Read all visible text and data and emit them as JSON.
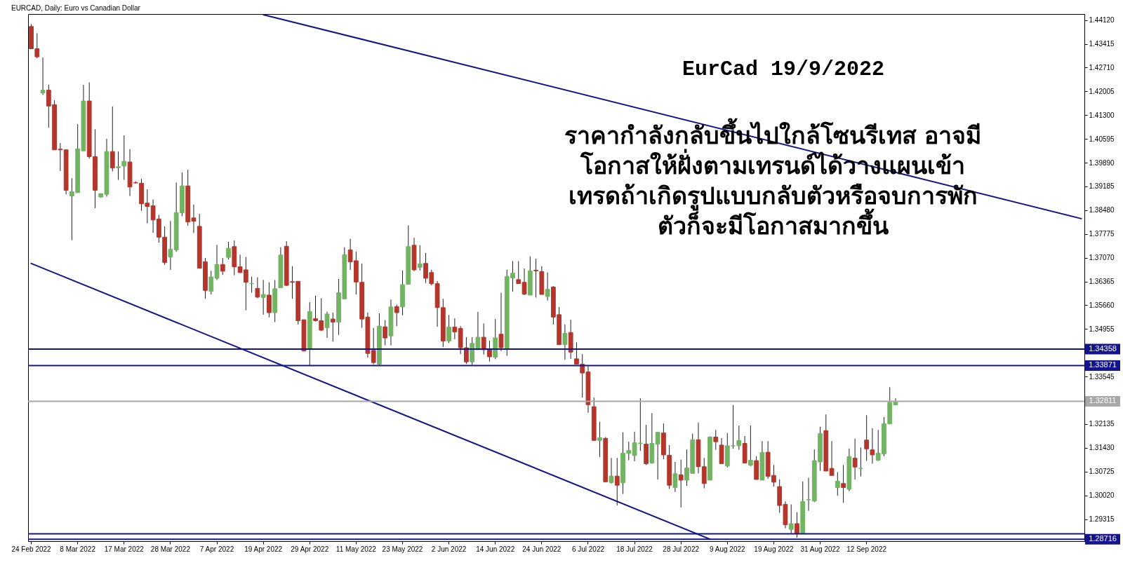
{
  "chart_data": {
    "type": "candlestick",
    "title": "EURCAD, Daily:  Euro vs Canadian Dollar",
    "annotations": [
      "EurCad 19/9/2022",
      "ราคากำลังกลับขึ้นไปใกล้โซนรีเทส  อาจมี\nโอกาสให้ฝั่งตามเทรนด์ได้วางแผนเข้า\nเทรดถ้าเกิดรูปแบบกลับตัวหรือจบการพัก\nตัวก็จะมีโอกาสมากขึ้น"
    ],
    "categories": [
      "24 Feb 2022",
      null,
      null,
      null,
      null,
      null,
      null,
      null,
      "8 Mar 2022",
      null,
      null,
      null,
      null,
      null,
      null,
      null,
      "17 Mar 2022",
      null,
      null,
      null,
      null,
      null,
      null,
      null,
      "28 Mar 2022",
      null,
      null,
      null,
      null,
      null,
      null,
      null,
      "7 Apr 2022",
      null,
      null,
      null,
      null,
      null,
      null,
      null,
      "19 Apr 2022",
      null,
      null,
      null,
      null,
      null,
      null,
      null,
      "29 Apr 2022",
      null,
      null,
      null,
      null,
      null,
      null,
      null,
      "11 May 2022",
      null,
      null,
      null,
      null,
      null,
      null,
      null,
      "23 May 2022",
      null,
      null,
      null,
      null,
      null,
      null,
      null,
      "2 Jun 2022",
      null,
      null,
      null,
      null,
      null,
      null,
      null,
      "14 Jun 2022",
      null,
      null,
      null,
      null,
      null,
      null,
      null,
      "24 Jun 2022",
      null,
      null,
      null,
      null,
      null,
      null,
      null,
      "6 Jul 2022",
      null,
      null,
      null,
      null,
      null,
      null,
      null,
      "18 Jul 2022",
      null,
      null,
      null,
      null,
      null,
      null,
      null,
      "28 Jul 2022",
      null,
      null,
      null,
      null,
      null,
      null,
      null,
      "9 Aug 2022",
      null,
      null,
      null,
      null,
      null,
      null,
      null,
      "19 Aug 2022",
      null,
      null,
      null,
      null,
      null,
      null,
      null,
      "31 Aug 2022",
      null,
      null,
      null,
      null,
      null,
      null,
      null,
      "12 Sep 2022",
      null,
      null,
      null,
      null,
      null,
      null,
      null,
      null,
      null,
      null,
      null,
      null,
      null,
      null,
      null,
      null,
      null,
      null,
      null,
      null,
      null,
      null,
      null,
      null,
      null,
      null,
      null,
      null,
      null,
      null,
      null,
      null,
      null,
      null,
      null,
      null,
      null
    ],
    "colors": [
      "#b3362c",
      "#b3362c",
      "#72b464",
      "#b3362c",
      "#b3362c",
      "#b3362c",
      "#b3362c",
      "#72b464",
      "#72b464",
      "#72b464",
      "#b3362c",
      "#b3362c",
      "#72b464",
      "#72b464",
      "#b3362c",
      "#72b464",
      "#72b464",
      "#b3362c",
      "#b3362c",
      "#b3362c",
      "#b3362c",
      "#b3362c",
      "#b3362c",
      "#b3362c",
      "#72b464",
      "#72b464",
      "#72b464",
      "#b3362c",
      "#b3362c",
      "#b3362c",
      "#b3362c",
      "#72b464",
      "#72b464",
      "#b3362c",
      "#72b464",
      "#b3362c",
      "#b3362c",
      "#b3362c",
      "#72b464",
      "#b3362c",
      "#72b464",
      "#b3362c",
      "#72b464",
      "#72b464",
      "#b3362c",
      "#b3362c",
      "#b3362c",
      "#b3362c",
      "#72b464",
      "#b3362c",
      "#b3362c",
      "#72b464",
      "#b3362c",
      "#72b464",
      "#72b464",
      "#b3362c",
      "#b3362c",
      "#b3362c",
      "#b3362c",
      "#b3362c",
      "#72b464",
      "#b3362c",
      "#72b464",
      "#b3362c",
      "#72b464",
      "#72b464",
      "#b3362c",
      "#72b464",
      "#b3362c",
      "#b3362c",
      "#b3362c",
      "#b3362c",
      "#72b464",
      "#b3362c",
      "#b3362c",
      "#b3362c",
      "#72b464",
      "#72b464",
      "#b3362c",
      "#b3362c",
      "#72b464",
      "#b3362c",
      "#72b464",
      "#72b464",
      "#b3362c",
      "#b3362c",
      "#72b464",
      "#b3362c",
      "#b3362c",
      "#72b464",
      "#b3362c",
      "#b3362c",
      "#72b464",
      "#b3362c",
      "#b3362c",
      "#b3362c",
      "#b3362c",
      "#b3362c",
      "#72b464",
      "#b3362c",
      "#72b464",
      "#b3362c",
      "#72b464",
      "#72b464",
      "#72b464",
      "#72b464",
      "#b3362c",
      "#72b464",
      "#72b464",
      "#b3362c",
      "#b3362c",
      "#72b464",
      "#b3362c",
      "#72b464",
      "#72b464",
      "#b3362c",
      "#b3362c",
      "#72b464",
      "#b3362c",
      "#b3362c",
      "#72b464",
      "#72b464",
      "#72b464",
      "#b3362c",
      "#72b464",
      "#b3362c",
      "#72b464",
      "#b3362c",
      "#b3362c",
      "#b3362c",
      "#b3362c",
      "#72b464",
      "#b3362c",
      "#72b464",
      "#72b464",
      "#72b464",
      "#72b464",
      "#b3362c",
      "#b3362c",
      "#72b464",
      "#b3362c",
      "#72b464",
      "#b3362c",
      "#72b464",
      "#b3362c",
      "#b3362c",
      "#72b464",
      "#72b464",
      "#72b464",
      "#72b464",
      null,
      null,
      null,
      null,
      null,
      null,
      null,
      null,
      null,
      null,
      null,
      null,
      null,
      null,
      null,
      null,
      null,
      null,
      null,
      null,
      null,
      null,
      null,
      null,
      null,
      null,
      null,
      null,
      null,
      null,
      null,
      null
    ],
    "ohlc": [
      [
        1.4393,
        1.44,
        1.4327,
        1.4327
      ],
      [
        1.4327,
        1.4373,
        1.4299,
        1.4303
      ],
      [
        1.4196,
        1.4301,
        1.419,
        1.4204
      ],
      [
        1.4204,
        1.422,
        1.4093,
        1.4157
      ],
      [
        1.4161,
        1.4174,
        1.4027,
        1.4027
      ],
      [
        1.4029,
        1.4047,
        1.3964,
        1.4027
      ],
      [
        1.4027,
        1.4029,
        1.3895,
        1.3907
      ],
      [
        1.389,
        1.3943,
        1.3759,
        1.3903
      ],
      [
        1.39,
        1.4103,
        1.39,
        1.403
      ],
      [
        1.4024,
        1.422,
        1.4024,
        1.4172
      ],
      [
        1.4172,
        1.4227,
        1.4001,
        1.4007
      ],
      [
        1.4007,
        1.4088,
        1.3854,
        1.3907
      ],
      [
        1.3887,
        1.3898,
        1.3886,
        1.3897
      ],
      [
        1.3895,
        1.406,
        1.3888,
        1.4022
      ],
      [
        1.4022,
        1.4156,
        1.3963,
        1.3973
      ],
      [
        1.3974,
        1.4022,
        1.3938,
        1.3977
      ],
      [
        1.3979,
        1.407,
        1.3938,
        1.3993
      ],
      [
        1.3991,
        1.4029,
        1.389,
        1.3917
      ],
      [
        1.393,
        1.3934,
        1.3927,
        1.3929
      ],
      [
        1.3928,
        1.3941,
        1.3846,
        1.3867
      ],
      [
        1.3869,
        1.391,
        1.3809,
        1.3859
      ],
      [
        1.3861,
        1.388,
        1.3781,
        1.3819
      ],
      [
        1.3822,
        1.3834,
        1.3752,
        1.3768
      ],
      [
        1.3768,
        1.38,
        1.3686,
        1.3693
      ],
      [
        1.3709,
        1.3816,
        1.3671,
        1.3732
      ],
      [
        1.373,
        1.393,
        1.3725,
        1.3841
      ],
      [
        1.384,
        1.396,
        1.383,
        1.392
      ],
      [
        1.392,
        1.3968,
        1.3802,
        1.3813
      ],
      [
        1.3825,
        1.3865,
        1.378,
        1.3815
      ],
      [
        1.38,
        1.3837,
        1.3676,
        1.3676
      ],
      [
        1.3695,
        1.3706,
        1.3585,
        1.361
      ],
      [
        1.3607,
        1.3668,
        1.3598,
        1.365
      ],
      [
        1.3646,
        1.3745,
        1.3641,
        1.3687
      ],
      [
        1.3687,
        1.3706,
        1.3656,
        1.3667
      ],
      [
        1.3708,
        1.3754,
        1.3702,
        1.3735
      ],
      [
        1.374,
        1.3758,
        1.3655,
        1.368
      ],
      [
        1.368,
        1.3716,
        1.3661,
        1.3663
      ],
      [
        1.3671,
        1.3709,
        1.3551,
        1.3634
      ],
      [
        1.363,
        1.3651,
        1.3603,
        1.363
      ],
      [
        1.3616,
        1.3649,
        1.3587,
        1.359
      ],
      [
        1.3589,
        1.3641,
        1.3538,
        1.3598
      ],
      [
        1.3596,
        1.3634,
        1.353,
        1.3544
      ],
      [
        1.3544,
        1.3641,
        1.3516,
        1.3615
      ],
      [
        1.3618,
        1.3738,
        1.3618,
        1.3715
      ],
      [
        1.3741,
        1.3756,
        1.3623,
        1.3625
      ],
      [
        1.3636,
        1.3682,
        1.3585,
        1.3634
      ],
      [
        1.3637,
        1.3637,
        1.3509,
        1.352
      ],
      [
        1.3523,
        1.3523,
        1.343,
        1.343
      ],
      [
        1.3436,
        1.3575,
        1.3387,
        1.3547
      ],
      [
        1.3526,
        1.3594,
        1.3518,
        1.352
      ],
      [
        1.352,
        1.3587,
        1.3489,
        1.3492
      ],
      [
        1.3499,
        1.3547,
        1.3469,
        1.354
      ],
      [
        1.3525,
        1.3544,
        1.3458,
        1.3516
      ],
      [
        1.3516,
        1.3644,
        1.3478,
        1.3603
      ],
      [
        1.3585,
        1.3738,
        1.3584,
        1.3716
      ],
      [
        1.373,
        1.3763,
        1.3671,
        1.3695
      ],
      [
        1.3698,
        1.3725,
        1.3598,
        1.3635
      ],
      [
        1.3634,
        1.369,
        1.3499,
        1.3525
      ],
      [
        1.3531,
        1.3544,
        1.3411,
        1.3423
      ],
      [
        1.3432,
        1.3499,
        1.3391,
        1.3396
      ],
      [
        1.3391,
        1.3542,
        1.3387,
        1.3504
      ],
      [
        1.3502,
        1.3522,
        1.3447,
        1.3469
      ],
      [
        1.3475,
        1.3583,
        1.3447,
        1.3561
      ],
      [
        1.3562,
        1.3568,
        1.3504,
        1.3544
      ],
      [
        1.3561,
        1.3669,
        1.3536,
        1.3627
      ],
      [
        1.3628,
        1.3803,
        1.3628,
        1.374
      ],
      [
        1.3744,
        1.3766,
        1.3667,
        1.3671
      ],
      [
        1.3678,
        1.3744,
        1.3669,
        1.3689
      ],
      [
        1.369,
        1.3721,
        1.3632,
        1.3646
      ],
      [
        1.3663,
        1.3671,
        1.3625,
        1.363
      ],
      [
        1.363,
        1.3638,
        1.3502,
        1.3559
      ],
      [
        1.3559,
        1.3585,
        1.3442,
        1.346
      ],
      [
        1.346,
        1.3537,
        1.3454,
        1.3501
      ],
      [
        1.3501,
        1.3527,
        1.3465,
        1.3487
      ],
      [
        1.3497,
        1.3504,
        1.3421,
        1.344
      ],
      [
        1.344,
        1.3471,
        1.3392,
        1.3398
      ],
      [
        1.3398,
        1.3471,
        1.3389,
        1.3453
      ],
      [
        1.3434,
        1.3546,
        1.3434,
        1.3471
      ],
      [
        1.3471,
        1.3512,
        1.342,
        1.3434
      ],
      [
        1.3434,
        1.3461,
        1.3399,
        1.3413
      ],
      [
        1.3412,
        1.3525,
        1.3406,
        1.3469
      ],
      [
        1.348,
        1.3603,
        1.343,
        1.344
      ],
      [
        1.3439,
        1.3671,
        1.3416,
        1.3651
      ],
      [
        1.3647,
        1.3697,
        1.3606,
        1.3661
      ],
      [
        1.3642,
        1.3697,
        1.363,
        1.363
      ],
      [
        1.3634,
        1.3675,
        1.3596,
        1.3599
      ],
      [
        1.3596,
        1.3711,
        1.3596,
        1.3668
      ],
      [
        1.367,
        1.3704,
        1.3589,
        1.3668
      ],
      [
        1.3666,
        1.3682,
        1.3598,
        1.3598
      ],
      [
        1.3592,
        1.3663,
        1.358,
        1.3613
      ],
      [
        1.362,
        1.3623,
        1.3509,
        1.3531
      ],
      [
        1.3538,
        1.3561,
        1.3449,
        1.3449
      ],
      [
        1.3449,
        1.3509,
        1.3404,
        1.3483
      ],
      [
        1.3485,
        1.3523,
        1.3407,
        1.3427
      ],
      [
        1.3407,
        1.3456,
        1.3391,
        1.3391
      ],
      [
        1.3391,
        1.3421,
        1.3292,
        1.3365
      ],
      [
        1.3368,
        1.3385,
        1.3247,
        1.3271
      ],
      [
        1.3265,
        1.3292,
        1.3165,
        1.3165
      ],
      [
        1.3165,
        1.322,
        1.3116,
        1.3173
      ],
      [
        1.3171,
        1.3175,
        1.3042,
        1.3042
      ],
      [
        1.304,
        1.3113,
        1.3037,
        1.3059
      ],
      [
        1.3059,
        1.3113,
        1.2972,
        1.3032
      ],
      [
        1.3039,
        1.3189,
        1.3006,
        1.3127
      ],
      [
        1.3127,
        1.3161,
        1.3106,
        1.3135
      ],
      [
        1.312,
        1.3191,
        1.3103,
        1.3158
      ],
      [
        1.3156,
        1.329,
        1.3134,
        1.3157
      ],
      [
        1.3154,
        1.3211,
        1.3092,
        1.3096
      ],
      [
        1.3098,
        1.3246,
        1.3096,
        1.3156
      ],
      [
        1.3154,
        1.3189,
        1.3049,
        1.3189
      ],
      [
        1.3187,
        1.3215,
        1.3109,
        1.3122
      ],
      [
        1.3121,
        1.3151,
        1.3021,
        1.3032
      ],
      [
        1.3025,
        1.3101,
        1.3012,
        1.3066
      ],
      [
        1.3063,
        1.3108,
        1.2966,
        1.3047
      ],
      [
        1.3047,
        1.3138,
        1.303,
        1.3083
      ],
      [
        1.3067,
        1.3185,
        1.3067,
        1.3167
      ],
      [
        1.3167,
        1.3218,
        1.3067,
        1.3087
      ],
      [
        1.3087,
        1.3113,
        1.3023,
        1.3037
      ],
      [
        1.3047,
        1.3177,
        1.3047,
        1.3175
      ],
      [
        1.3175,
        1.3196,
        1.3137,
        1.3161
      ],
      [
        1.3151,
        1.3172,
        1.3096,
        1.3096
      ],
      [
        1.3089,
        1.3187,
        1.3085,
        1.3149
      ],
      [
        1.3149,
        1.327,
        1.314,
        1.3149
      ],
      [
        1.3149,
        1.3209,
        1.3137,
        1.3165
      ],
      [
        1.3156,
        1.3178,
        1.3098,
        1.3098
      ],
      [
        1.3091,
        1.3209,
        1.3089,
        1.3106
      ],
      [
        1.3105,
        1.3118,
        1.3049,
        1.3049
      ],
      [
        1.3047,
        1.3163,
        1.3047,
        1.3129
      ],
      [
        1.313,
        1.3163,
        1.3051,
        1.3058
      ],
      [
        1.3061,
        1.3092,
        1.3028,
        1.3041
      ],
      [
        1.3028,
        1.3049,
        1.295,
        1.2972
      ],
      [
        1.2975,
        1.2984,
        1.2904,
        1.2915
      ],
      [
        1.2901,
        1.2975,
        1.289,
        1.2918
      ],
      [
        1.2918,
        1.2952,
        1.2877,
        1.2888
      ],
      [
        1.2888,
        1.3043,
        1.2888,
        1.2984
      ],
      [
        1.2989,
        1.3054,
        1.2956,
        1.2989
      ],
      [
        1.2985,
        1.3138,
        1.2982,
        1.3105
      ],
      [
        1.3101,
        1.3205,
        1.3075,
        1.3185
      ],
      [
        1.3194,
        1.3242,
        1.3074,
        1.3074
      ],
      [
        1.3082,
        1.3163,
        1.306,
        1.3061
      ],
      [
        1.3025,
        1.3071,
        1.3001,
        1.3044
      ],
      [
        1.3037,
        1.3092,
        1.298,
        1.3025
      ],
      [
        1.302,
        1.3141,
        1.3014,
        1.3117
      ],
      [
        1.3112,
        1.317,
        1.3049,
        1.3086
      ],
      [
        1.3082,
        1.3144,
        1.3058,
        1.3082
      ],
      [
        1.3166,
        1.324,
        1.3104,
        1.314
      ],
      [
        1.3137,
        1.3201,
        1.3096,
        1.3122
      ],
      [
        1.3106,
        1.3196,
        1.3104,
        1.3127
      ],
      [
        1.3125,
        1.3234,
        1.3118,
        1.3214
      ],
      [
        1.3214,
        1.3323,
        1.3214,
        1.3278
      ],
      [
        1.327,
        1.329,
        1.327,
        1.3281
      ],
      null,
      null,
      null,
      null,
      null,
      null,
      null,
      null,
      null,
      null,
      null,
      null,
      null,
      null,
      null,
      null,
      null,
      null,
      null,
      null,
      null,
      null,
      null,
      null,
      null,
      null,
      null,
      null,
      null,
      null,
      null,
      null
    ],
    "series": [
      {
        "type": "line",
        "color": "#14148c",
        "values": [
          null,
          null,
          null,
          null,
          null,
          null,
          null,
          null,
          null,
          null,
          null,
          null,
          null,
          null,
          null,
          null,
          null,
          null,
          null,
          null,
          null,
          null,
          null,
          null,
          null,
          null,
          null,
          null,
          null,
          null,
          null,
          null,
          null,
          null,
          null,
          null,
          null,
          null,
          null,
          null,
          1.4428,
          null,
          null,
          null,
          null,
          null,
          null,
          null,
          null,
          null,
          null,
          null,
          null,
          null,
          null,
          null,
          null,
          null,
          null,
          null,
          null,
          null,
          null,
          null,
          null,
          null,
          null,
          null,
          null,
          null,
          null,
          null,
          null,
          null,
          null,
          null,
          null,
          null,
          null,
          null,
          null,
          null,
          null,
          null,
          null,
          null,
          null,
          null,
          null,
          null,
          null,
          null,
          null,
          null,
          null,
          null,
          null,
          null,
          null,
          null,
          null,
          null,
          null,
          null,
          null,
          null,
          null,
          null,
          null,
          null,
          null,
          null,
          null,
          null,
          null,
          null,
          null,
          null,
          null,
          null,
          null,
          null,
          null,
          null,
          null,
          null,
          null,
          null,
          null,
          null,
          null,
          null,
          null,
          null,
          null,
          null,
          null,
          null,
          null,
          null,
          null,
          null,
          null,
          null,
          null,
          null,
          null,
          null,
          null,
          null,
          null,
          null,
          null,
          null,
          null,
          null,
          null,
          null,
          null,
          null,
          null,
          null,
          null,
          null,
          null,
          null,
          null,
          null,
          null,
          null,
          null,
          null,
          null,
          null,
          null,
          null,
          null,
          null,
          null,
          null,
          null,
          1.3823
        ]
      },
      {
        "type": "line",
        "color": "#14148c",
        "values": [
          1.369,
          null,
          null,
          null,
          null,
          null,
          null,
          null,
          null,
          null,
          null,
          null,
          null,
          null,
          null,
          null,
          null,
          null,
          null,
          null,
          null,
          null,
          null,
          null,
          null,
          null,
          null,
          null,
          null,
          null,
          null,
          null,
          null,
          null,
          null,
          null,
          null,
          null,
          null,
          null,
          null,
          null,
          null,
          null,
          null,
          null,
          null,
          null,
          null,
          null,
          null,
          null,
          null,
          null,
          null,
          null,
          null,
          null,
          null,
          null,
          null,
          null,
          null,
          null,
          null,
          null,
          null,
          null,
          null,
          null,
          null,
          null,
          null,
          null,
          null,
          null,
          null,
          null,
          null,
          null,
          null,
          null,
          null,
          null,
          null,
          null,
          null,
          null,
          null,
          null,
          null,
          null,
          null,
          null,
          null,
          null,
          null,
          null,
          null,
          null,
          null,
          null,
          null,
          null,
          null,
          null,
          null,
          null,
          null,
          null,
          null,
          null,
          null,
          null,
          null,
          null,
          null,
          1.2872,
          null,
          null,
          null,
          null,
          null,
          null,
          null,
          null,
          null,
          null,
          null,
          null,
          null,
          null,
          null,
          null,
          null,
          null,
          null,
          null,
          null,
          null,
          null,
          null,
          null,
          null,
          null,
          null,
          null,
          null,
          null,
          null,
          null,
          null,
          null,
          null,
          null,
          null,
          null,
          null,
          null,
          null,
          null,
          null,
          null,
          null,
          null,
          null,
          null,
          null,
          null,
          null,
          null,
          null,
          null,
          null,
          null,
          null,
          null,
          null,
          null,
          null,
          null,
          null
        ]
      }
    ],
    "ref_lines": [
      {
        "axis": "y",
        "value": 1.34358,
        "label": "1.34358",
        "color": "#14148c"
      },
      {
        "axis": "y",
        "value": 1.33871,
        "label": "1.33871",
        "color": "#14148c"
      },
      {
        "axis": "y",
        "value": 1.32811,
        "label": "1.32811",
        "color": "#a8a8a8"
      },
      {
        "axis": "y",
        "value": 1.2888,
        "label": null,
        "color": "#14148c"
      },
      {
        "axis": "y",
        "value": 1.28716,
        "label": "1.28716",
        "color": "#14148c"
      }
    ],
    "ylim": [
      1.2866,
      1.443
    ],
    "yticks": [
      {
        "value": 1.4412,
        "label": "1.44120"
      },
      {
        "value": 1.43415,
        "label": "1.43415"
      },
      {
        "value": 1.4271,
        "label": "1.42710"
      },
      {
        "value": 1.42005,
        "label": "1.42005"
      },
      {
        "value": 1.413,
        "label": "1.41300"
      },
      {
        "value": 1.40595,
        "label": "1.40595"
      },
      {
        "value": 1.3989,
        "label": "1.39890"
      },
      {
        "value": 1.39185,
        "label": "1.39185"
      },
      {
        "value": 1.3848,
        "label": "1.38480"
      },
      {
        "value": 1.37775,
        "label": "1.37775"
      },
      {
        "value": 1.3707,
        "label": "1.37070"
      },
      {
        "value": 1.36365,
        "label": "1.36365"
      },
      {
        "value": 1.3566,
        "label": "1.35660"
      },
      {
        "value": 1.34955,
        "label": "1.34955"
      },
      {
        "value": 1.33545,
        "label": "1.33545"
      },
      {
        "value": 1.32135,
        "label": "1.32135"
      },
      {
        "value": 1.3143,
        "label": "1.31430"
      },
      {
        "value": 1.30725,
        "label": "1.30725"
      },
      {
        "value": 1.3002,
        "label": "1.30020"
      },
      {
        "value": 1.29315,
        "label": "1.29315"
      }
    ]
  }
}
